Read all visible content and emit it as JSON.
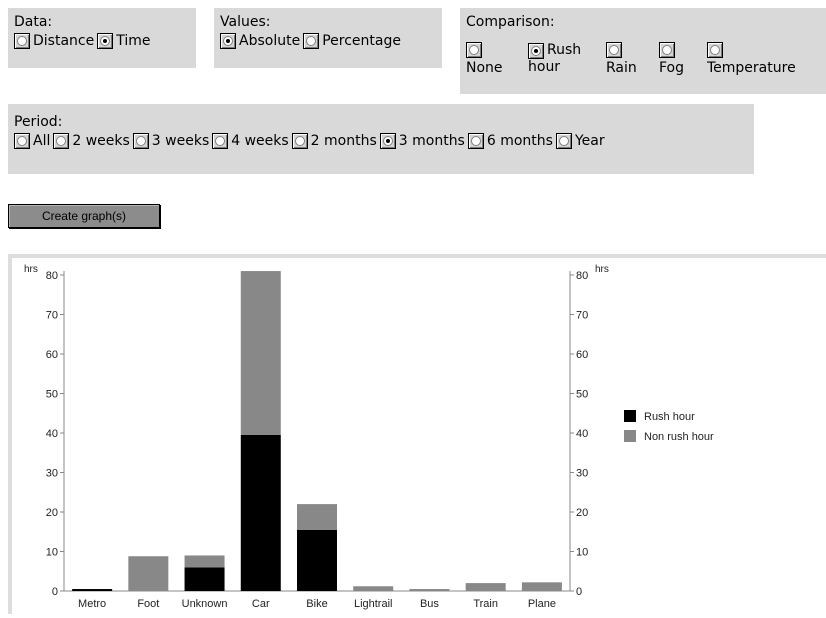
{
  "data_group": {
    "title": "Data:",
    "options": [
      {
        "label": "Distance",
        "checked": false
      },
      {
        "label": "Time",
        "checked": true
      }
    ]
  },
  "values_group": {
    "title": "Values:",
    "options": [
      {
        "label": "Absolute",
        "checked": true
      },
      {
        "label": "Percentage",
        "checked": false
      }
    ]
  },
  "comparison_group": {
    "title": "Comparison:",
    "options": [
      {
        "line1": "None",
        "line2": "",
        "checked": false
      },
      {
        "line1": "Rush",
        "line2": "hour",
        "checked": true
      },
      {
        "line1": "Rain",
        "line2": "",
        "checked": false
      },
      {
        "line1": "Fog",
        "line2": "",
        "checked": false
      },
      {
        "line1": "Temperature",
        "line2": "",
        "checked": false
      }
    ]
  },
  "period_group": {
    "title": "Period:",
    "options": [
      {
        "label": "All",
        "checked": false
      },
      {
        "label": "2 weeks",
        "checked": false
      },
      {
        "label": "3 weeks",
        "checked": false
      },
      {
        "label": "4 weeks",
        "checked": false
      },
      {
        "label": "2 months",
        "checked": false
      },
      {
        "label": "3 months",
        "checked": true
      },
      {
        "label": "6 months",
        "checked": false
      },
      {
        "label": "Year",
        "checked": false
      }
    ]
  },
  "create_button": {
    "label": "Create graph(s)"
  },
  "chart_data": {
    "type": "bar",
    "stacked": true,
    "categories": [
      "Metro",
      "Foot",
      "Unknown",
      "Car",
      "Bike",
      "Lightrail",
      "Bus",
      "Train",
      "Plane"
    ],
    "series": [
      {
        "name": "Rush hour",
        "color": "#000000",
        "values": [
          0.5,
          0,
          6,
          39.5,
          15.5,
          0,
          0,
          0,
          0
        ]
      },
      {
        "name": "Non rush hour",
        "color": "#888888",
        "values": [
          0,
          8.8,
          3,
          41.5,
          6.5,
          1.2,
          0.5,
          2,
          2.2
        ]
      }
    ],
    "ylabel": "hrs",
    "ylabel_right": "hrs",
    "ylim": [
      0,
      80
    ],
    "yticks": [
      "0",
      "10",
      "20",
      "30",
      "40",
      "50",
      "60",
      "70",
      "80"
    ],
    "grid": false,
    "legend_position": "right"
  }
}
